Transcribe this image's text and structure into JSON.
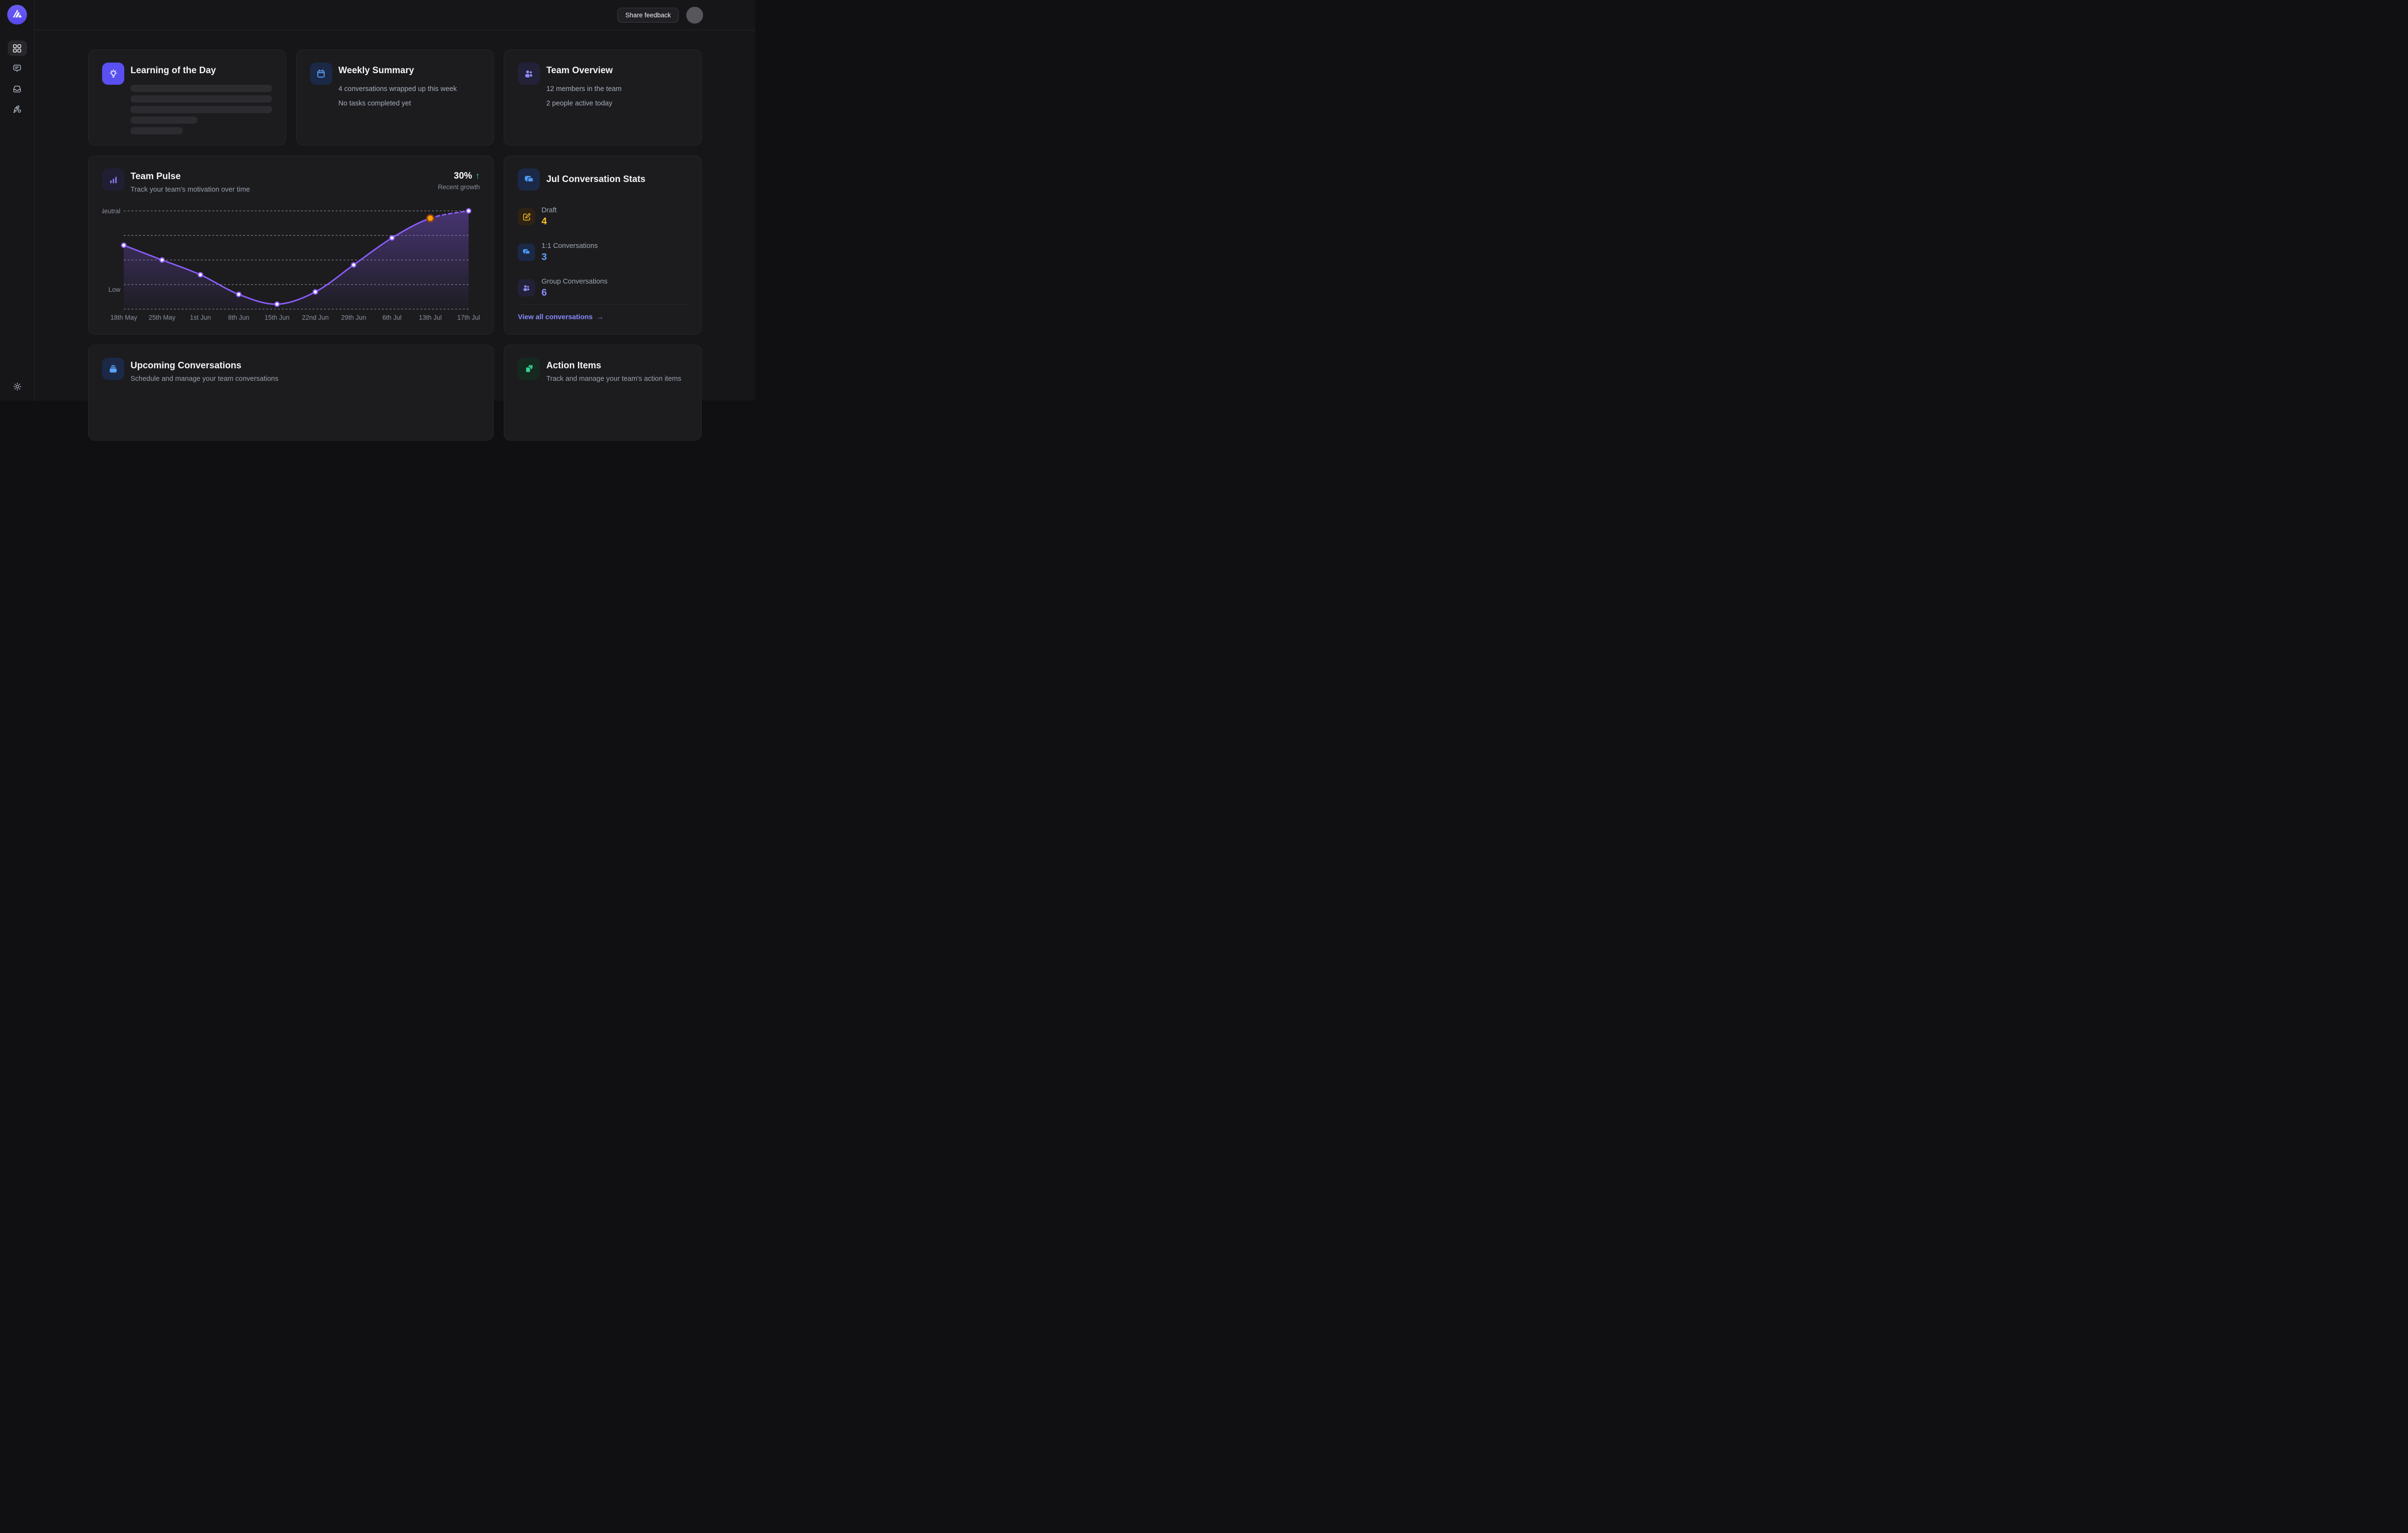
{
  "topbar": {
    "share_feedback": "Share feedback"
  },
  "sidebar": {
    "icons": [
      "dashboard-grid",
      "messages",
      "inbox",
      "rocket"
    ],
    "active": "dashboard-grid",
    "theme_toggle": "sun"
  },
  "cards": {
    "learning": {
      "title": "Learning of the Day"
    },
    "weekly_summary": {
      "title": "Weekly Summary",
      "line1": "4 conversations wrapped up this week",
      "line2": "No tasks completed yet"
    },
    "team_overview": {
      "title": "Team Overview",
      "line1": "12 members in the team",
      "line2": "2 people active today"
    },
    "team_pulse": {
      "title": "Team Pulse",
      "subtitle": "Track your team's motivation over time",
      "growth_value": "30%",
      "growth_arrow": "↑",
      "growth_label": "Recent growth"
    },
    "conversation_stats": {
      "title": "Jul Conversation Stats",
      "items": [
        {
          "icon": "edit-icon",
          "label": "Draft",
          "value": "4",
          "color": "#fbbf24"
        },
        {
          "icon": "chat-bubbles-icon",
          "label": "1:1 Conversations",
          "value": "3",
          "color": "#60a5fa"
        },
        {
          "icon": "users-icon",
          "label": "Group Conversations",
          "value": "6",
          "color": "#8d8df8"
        }
      ],
      "link": {
        "label": "View all conversations",
        "arrow": "→"
      }
    },
    "upcoming": {
      "title": "Upcoming Conversations",
      "subtitle": "Schedule and manage your team conversations"
    },
    "action_items": {
      "title": "Action Items",
      "subtitle": "Track and manage your team's action items"
    }
  },
  "chart_data": {
    "type": "line",
    "title": "Team Pulse",
    "x": [
      "18th May",
      "25th May",
      "1st Jun",
      "8th Jun",
      "15th Jun",
      "22nd Jun",
      "29th Jun",
      "6th Jul",
      "13th Jul",
      "17th Jul"
    ],
    "values": [
      2.3,
      2.0,
      1.7,
      1.3,
      1.1,
      1.35,
      1.9,
      2.45,
      2.85,
      3.0
    ],
    "y_axis": {
      "min": 1.0,
      "max": 3.0,
      "gridline_values": [
        3.0,
        2.5,
        2.0,
        1.5,
        1.0
      ],
      "labels": [
        {
          "text": "Neutral",
          "value": 3.0
        },
        {
          "text": "Low",
          "value": 1.4
        }
      ]
    },
    "highlight_index": 8,
    "dashed_from_index": 8,
    "grid": true,
    "legend": false,
    "line_color": "#8b5cf6",
    "dot_fill": "#ffffff",
    "highlight_color": "#f59e0b",
    "highlight_ring": "#92400e",
    "gridline_color": "#d9dce2",
    "axis_text_color": "#8b919d",
    "area_color": "#8b5cf6"
  }
}
